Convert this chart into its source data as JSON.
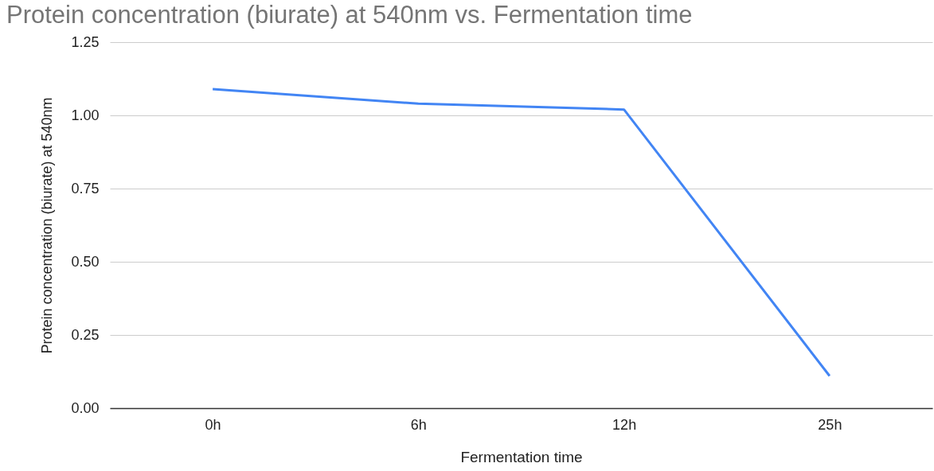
{
  "chart_data": {
    "type": "line",
    "title": "Protein concentration (biurate) at 540nm vs. Fermentation time",
    "xlabel": "Fermentation time",
    "ylabel": "Protein concentration (biurate) at 540nm",
    "categories": [
      "0h",
      "6h",
      "12h",
      "25h"
    ],
    "series": [
      {
        "color": "#4285f4",
        "values": [
          1.09,
          1.04,
          1.02,
          0.11
        ]
      }
    ],
    "ylim": [
      0,
      1.25
    ],
    "yticks": [
      {
        "value": 0,
        "label": "0.00"
      },
      {
        "value": 0.25,
        "label": "0.25"
      },
      {
        "value": 0.5,
        "label": "0.50"
      },
      {
        "value": 0.75,
        "label": "0.75"
      },
      {
        "value": 1,
        "label": "1.00"
      },
      {
        "value": 1.25,
        "label": "1.25"
      }
    ],
    "grid": "y",
    "legend": false,
    "marker": "none",
    "line_style": "solid"
  }
}
